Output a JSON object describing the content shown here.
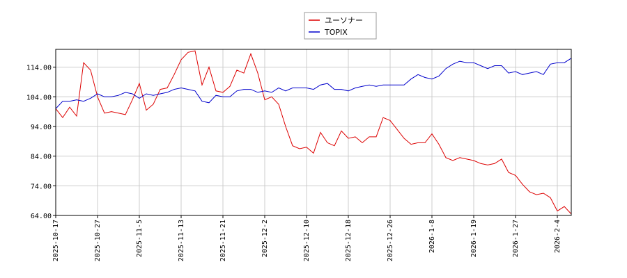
{
  "chart_data": {
    "type": "line",
    "ylim": [
      64,
      120
    ],
    "yticks": [
      "114.00",
      "104.00",
      "94.00",
      "84.00",
      "74.00",
      "64.00"
    ],
    "ytick_values": [
      114,
      104,
      94,
      84,
      74,
      64
    ],
    "xticks": [
      "2025-10-17",
      "2025-10-27",
      "2025-11-5",
      "2025-11-13",
      "2025-11-21",
      "2025-12-2",
      "2025-12-10",
      "2025-12-18",
      "2025-12-26",
      "2026-1-8",
      "2026-1-19",
      "2026-1-27",
      "2026-2-4"
    ],
    "xtick_index": [
      0,
      6,
      12,
      18,
      24,
      30,
      36,
      42,
      48,
      54,
      60,
      66,
      72
    ],
    "grid": true,
    "legend_position": "top-center",
    "series": [
      {
        "name": "ユーソナー",
        "color": "#dd0000",
        "values": [
          100,
          97,
          100.5,
          97.5,
          115.5,
          113,
          104,
          98.5,
          99,
          98.5,
          98,
          103,
          108.5,
          99.5,
          101.5,
          106.5,
          107,
          111.5,
          116.5,
          119,
          119.5,
          108,
          114,
          106,
          105.5,
          107.5,
          113,
          112,
          118.5,
          112,
          103,
          104,
          101.5,
          94,
          87.5,
          86.5,
          87,
          85,
          92,
          88.5,
          87.5,
          92.5,
          90,
          90.5,
          88.5,
          90.5,
          90.5,
          97,
          96,
          93,
          90,
          88,
          88.5,
          88.5,
          91.5,
          88,
          83.5,
          82.5,
          83.5,
          83,
          82.5,
          81.5,
          81,
          81.5,
          83,
          78.5,
          77.5,
          74.5,
          72,
          71,
          71.5,
          70,
          65.5,
          67,
          64.5
        ]
      },
      {
        "name": "TOPIX",
        "color": "#0000cc",
        "values": [
          100,
          102.5,
          102.5,
          103,
          102.5,
          103.5,
          105,
          104,
          104,
          104.5,
          105.5,
          105,
          103.5,
          105,
          104.5,
          105,
          105.5,
          106.5,
          107,
          106.5,
          106,
          102.5,
          102,
          104.5,
          104,
          104,
          106,
          106.5,
          106.5,
          105.5,
          106,
          105.5,
          107,
          106,
          107,
          107,
          107,
          106.5,
          108,
          108.5,
          106.5,
          106.5,
          106,
          107,
          107.5,
          108,
          107.5,
          108,
          108,
          108,
          108,
          110,
          111.5,
          110.5,
          110,
          111,
          113.5,
          115,
          116,
          115.5,
          115.5,
          114.5,
          113.5,
          114.5,
          114.5,
          112,
          112.5,
          111.5,
          112,
          112.5,
          111.5,
          115,
          115.5,
          115.5,
          117
        ]
      }
    ]
  }
}
